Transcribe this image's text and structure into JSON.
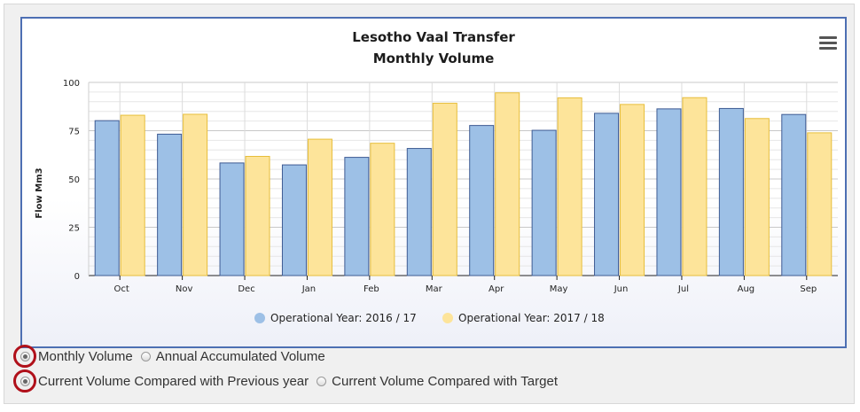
{
  "chart_data": {
    "type": "bar",
    "title": "Lesotho Vaal Transfer",
    "subtitle": "Monthly Volume",
    "xlabel": "",
    "ylabel": "Flow Mm3",
    "ylim": [
      0,
      100
    ],
    "yticks": [
      "0",
      "25",
      "50",
      "75",
      "100"
    ],
    "categories": [
      "Oct",
      "Nov",
      "Dec",
      "Jan",
      "Feb",
      "Mar",
      "Apr",
      "May",
      "Jun",
      "Jul",
      "Aug",
      "Sep"
    ],
    "series": [
      {
        "name": "Operational Year: 2016 / 17",
        "color": "#9dc0e6",
        "stroke": "#3e5b93",
        "values": [
          80.2,
          73.2,
          58.3,
          57.3,
          61.2,
          65.8,
          77.7,
          75.2,
          84.0,
          86.3,
          86.5,
          83.4
        ]
      },
      {
        "name": "Operational Year: 2017 / 18",
        "color": "#fde49a",
        "stroke": "#e7be3a",
        "values": [
          83.0,
          83.5,
          61.7,
          70.6,
          68.5,
          89.2,
          94.6,
          92.0,
          88.6,
          92.1,
          81.3,
          73.9
        ]
      }
    ],
    "grid": true,
    "legend_position": "bottom"
  },
  "menu": {
    "icon": "hamburger-menu-icon"
  },
  "options": {
    "row1": [
      {
        "label": "Monthly Volume",
        "checked": true
      },
      {
        "label": "Annual Accumulated Volume",
        "checked": false
      }
    ],
    "row2": [
      {
        "label": "Current Volume Compared with Previous year",
        "checked": true
      },
      {
        "label": "Current Volume Compared with Target",
        "checked": false
      }
    ]
  }
}
